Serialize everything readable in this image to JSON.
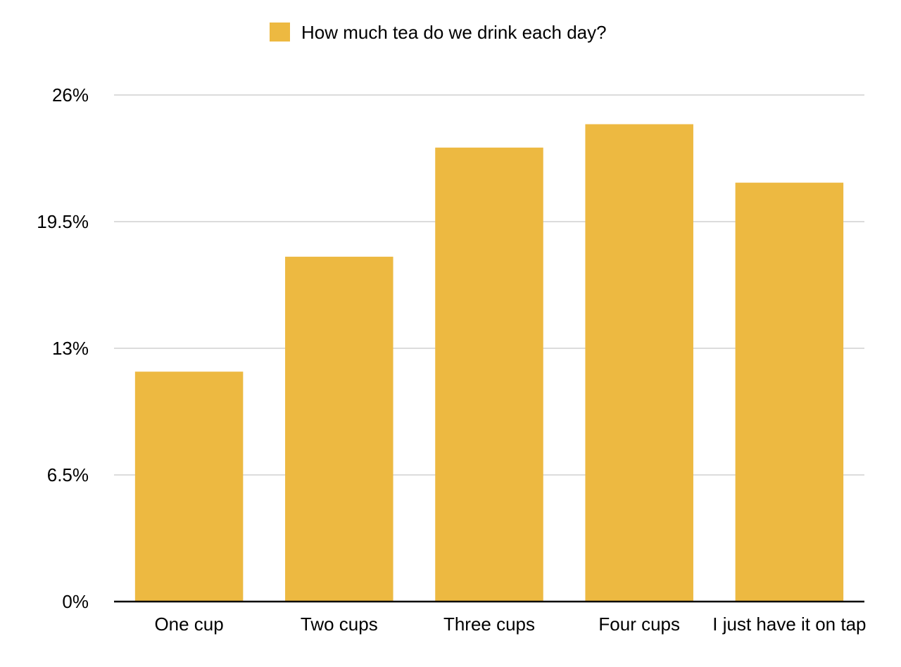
{
  "chart_data": {
    "type": "bar",
    "categories": [
      "One cup",
      "Two cups",
      "Three cups",
      "Four cups",
      "I just have it on tap"
    ],
    "series": [
      {
        "name": "How much tea do we drink each day?",
        "values": [
          11.8,
          17.7,
          23.3,
          24.5,
          21.5
        ],
        "color": "#EDB941"
      }
    ],
    "ylim": [
      0,
      26
    ],
    "yticks": [
      0,
      6.5,
      13,
      19.5,
      26
    ],
    "ytick_labels": [
      "0%",
      "6.5%",
      "13%",
      "19.5%",
      "26%"
    ],
    "grid": true,
    "legend_position": "top-center",
    "gridline_color": "#C8C8C8",
    "axis_color": "#000000"
  }
}
